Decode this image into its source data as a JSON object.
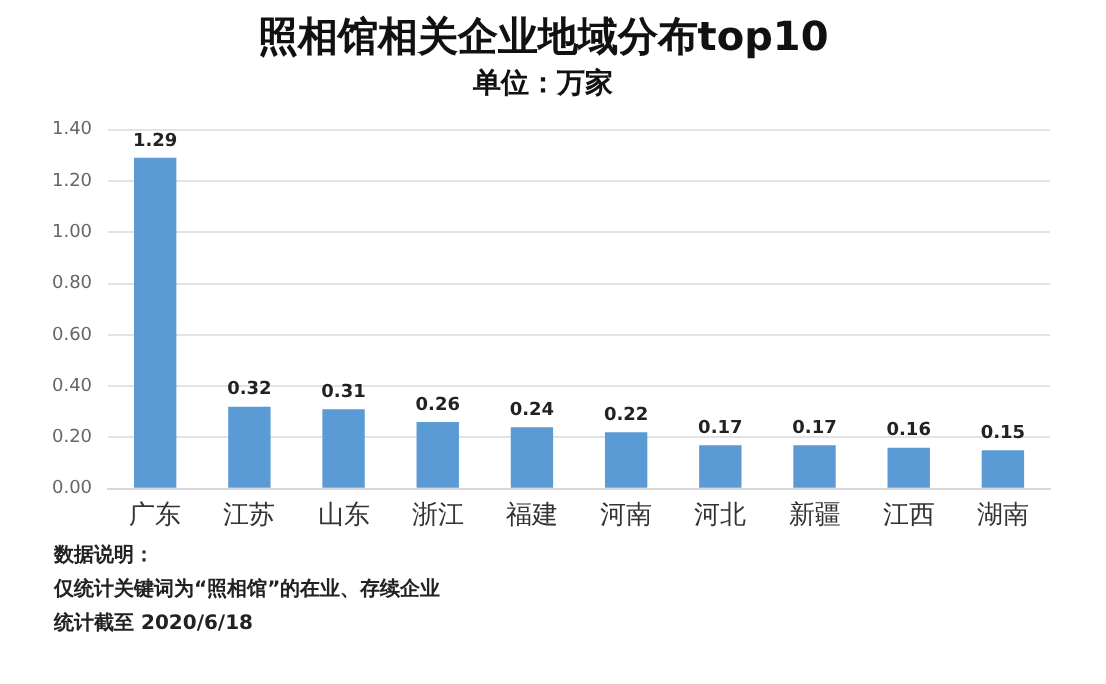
{
  "chart_data": {
    "type": "bar",
    "title": "照相馆相关企业地域分布top10",
    "subtitle": "单位：万家",
    "categories": [
      "广东",
      "江苏",
      "山东",
      "浙江",
      "福建",
      "河南",
      "河北",
      "新疆",
      "江西",
      "湖南"
    ],
    "values": [
      1.29,
      0.32,
      0.31,
      0.26,
      0.24,
      0.22,
      0.17,
      0.17,
      0.16,
      0.15
    ],
    "color": "#5b9bd5",
    "ylim": [
      0,
      1.4
    ],
    "yticks": [
      {
        "value": 0,
        "label": "0.00"
      },
      {
        "value": 0.2,
        "label": "0.20"
      },
      {
        "value": 0.4,
        "label": "0.40"
      },
      {
        "value": 0.6,
        "label": "0.60"
      },
      {
        "value": 0.8,
        "label": "0.80"
      },
      {
        "value": 1,
        "label": "1.00"
      },
      {
        "value": 1.2,
        "label": "1.20"
      },
      {
        "value": 1.4,
        "label": "1.40"
      }
    ],
    "grid": "y",
    "legend": false,
    "data_labels": true,
    "annotations": [
      "数据说明：",
      "仅统计关键词为“照相馆”的在业、存续企业",
      "统计截至 2020/6/18"
    ]
  }
}
